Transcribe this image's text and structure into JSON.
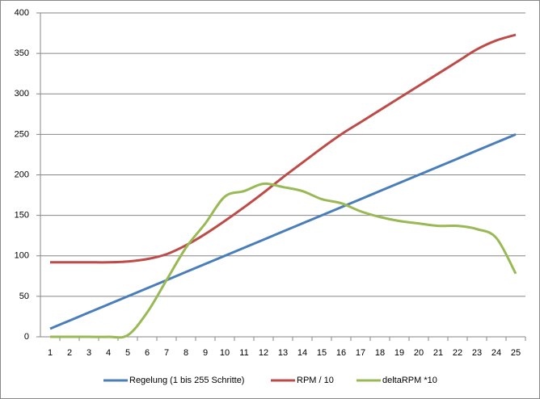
{
  "chart_data": {
    "type": "line",
    "categories": [
      "1",
      "2",
      "3",
      "4",
      "5",
      "6",
      "7",
      "8",
      "9",
      "10",
      "11",
      "12",
      "13",
      "14",
      "15",
      "16",
      "17",
      "18",
      "19",
      "20",
      "21",
      "22",
      "23",
      "24",
      "25"
    ],
    "series": [
      {
        "name": "Regelung (1 bis 255 Schritte)",
        "color": "#4a7ebb",
        "values": [
          10,
          20,
          30,
          40,
          50,
          60,
          70,
          80,
          90,
          100,
          110,
          120,
          130,
          140,
          150,
          160,
          170,
          180,
          190,
          200,
          210,
          220,
          230,
          240,
          250
        ]
      },
      {
        "name": "RPM / 10",
        "color": "#be4b48",
        "values": [
          92,
          92,
          92,
          92,
          93,
          96,
          102,
          113,
          127,
          143,
          160,
          178,
          197,
          215,
          233,
          250,
          265,
          280,
          295,
          310,
          325,
          340,
          355,
          366,
          373
        ]
      },
      {
        "name": "deltaRPM *10",
        "color": "#98b954",
        "values": [
          0,
          0,
          0,
          0,
          2,
          30,
          70,
          110,
          140,
          173,
          180,
          189,
          185,
          180,
          170,
          165,
          155,
          148,
          143,
          140,
          137,
          137,
          133,
          122,
          78
        ]
      }
    ],
    "ylim": [
      0,
      400
    ],
    "yticks": [
      0,
      50,
      100,
      150,
      200,
      250,
      300,
      350,
      400
    ],
    "grid": true
  }
}
